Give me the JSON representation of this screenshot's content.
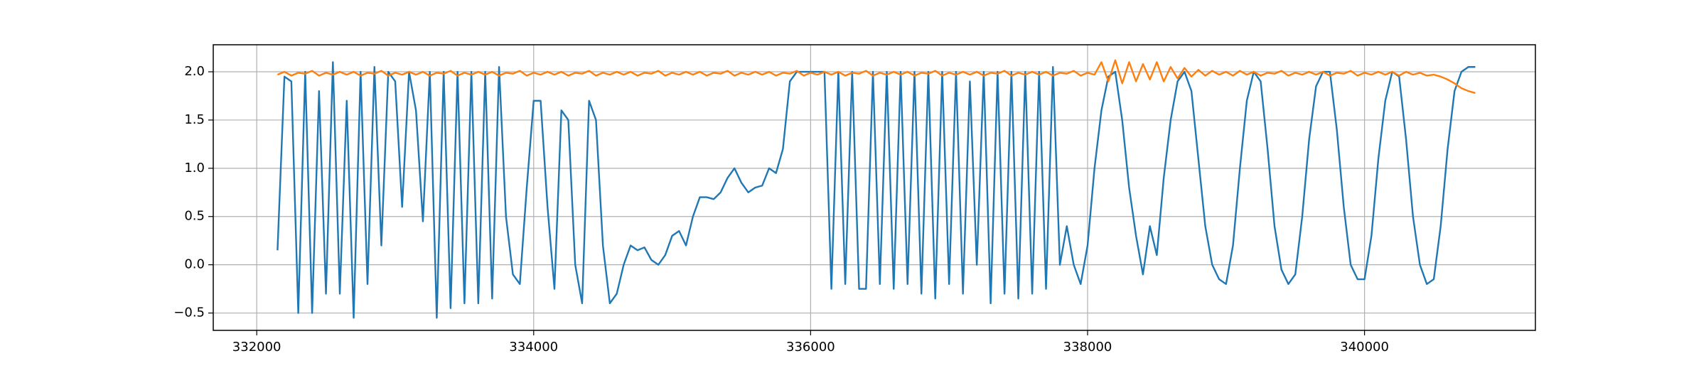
{
  "chart_data": {
    "type": "line",
    "x": [
      332150,
      332200,
      332250,
      332300,
      332350,
      332400,
      332450,
      332500,
      332550,
      332600,
      332650,
      332700,
      332750,
      332800,
      332850,
      332900,
      332950,
      333000,
      333050,
      333100,
      333150,
      333200,
      333250,
      333300,
      333350,
      333400,
      333450,
      333500,
      333550,
      333600,
      333650,
      333700,
      333750,
      333800,
      333850,
      333900,
      333950,
      334000,
      334050,
      334100,
      334150,
      334200,
      334250,
      334300,
      334350,
      334400,
      334450,
      334500,
      334550,
      334600,
      334650,
      334700,
      334750,
      334800,
      334850,
      334900,
      334950,
      335000,
      335050,
      335100,
      335150,
      335200,
      335250,
      335300,
      335350,
      335400,
      335450,
      335500,
      335550,
      335600,
      335650,
      335700,
      335750,
      335800,
      335850,
      335900,
      335950,
      336000,
      336050,
      336100,
      336150,
      336200,
      336250,
      336300,
      336350,
      336400,
      336450,
      336500,
      336550,
      336600,
      336650,
      336700,
      336750,
      336800,
      336850,
      336900,
      336950,
      337000,
      337050,
      337100,
      337150,
      337200,
      337250,
      337300,
      337350,
      337400,
      337450,
      337500,
      337550,
      337600,
      337650,
      337700,
      337750,
      337800,
      337850,
      337900,
      337950,
      338000,
      338050,
      338100,
      338150,
      338200,
      338250,
      338300,
      338350,
      338400,
      338450,
      338500,
      338550,
      338600,
      338650,
      338700,
      338750,
      338800,
      338850,
      338900,
      338950,
      339000,
      339050,
      339100,
      339150,
      339200,
      339250,
      339300,
      339350,
      339400,
      339450,
      339500,
      339550,
      339600,
      339650,
      339700,
      339750,
      339800,
      339850,
      339900,
      339950,
      340000,
      340050,
      340100,
      340150,
      340200,
      340250,
      340300,
      340350,
      340400,
      340450,
      340500,
      340550,
      340600,
      340650,
      340700,
      340750,
      340800
    ],
    "series": [
      {
        "color": "#1f77b4",
        "values": [
          0.15,
          1.95,
          1.9,
          -0.5,
          2.0,
          -0.5,
          1.8,
          -0.3,
          2.1,
          -0.3,
          1.7,
          -0.55,
          2.0,
          -0.2,
          2.05,
          0.2,
          2.0,
          1.9,
          0.6,
          2.0,
          1.6,
          0.45,
          2.0,
          -0.55,
          2.0,
          -0.45,
          2.0,
          -0.4,
          2.0,
          -0.4,
          2.0,
          -0.35,
          2.05,
          0.5,
          -0.1,
          -0.2,
          0.8,
          1.7,
          1.7,
          0.6,
          -0.25,
          1.6,
          1.5,
          0.0,
          -0.4,
          1.7,
          1.5,
          0.2,
          -0.4,
          -0.3,
          0.0,
          0.2,
          0.15,
          0.18,
          0.05,
          0.0,
          0.1,
          0.3,
          0.35,
          0.2,
          0.5,
          0.7,
          0.7,
          0.68,
          0.75,
          0.9,
          1.0,
          0.85,
          0.75,
          0.8,
          0.82,
          1.0,
          0.95,
          1.2,
          1.9,
          2.0,
          2.0,
          2.0,
          2.0,
          2.0,
          -0.25,
          2.0,
          -0.2,
          2.0,
          -0.25,
          -0.25,
          2.0,
          -0.2,
          2.0,
          -0.25,
          2.0,
          -0.2,
          2.0,
          -0.3,
          2.0,
          -0.35,
          2.0,
          -0.2,
          2.0,
          -0.3,
          1.9,
          0.0,
          2.0,
          -0.4,
          2.0,
          -0.3,
          2.0,
          -0.35,
          2.0,
          -0.3,
          2.0,
          -0.25,
          2.05,
          0.0,
          0.4,
          0.0,
          -0.2,
          0.2,
          1.0,
          1.6,
          1.95,
          2.0,
          1.5,
          0.8,
          0.3,
          -0.1,
          0.4,
          0.1,
          0.9,
          1.5,
          1.9,
          2.0,
          1.8,
          1.1,
          0.4,
          0.0,
          -0.15,
          -0.2,
          0.2,
          1.0,
          1.7,
          2.0,
          1.9,
          1.2,
          0.4,
          -0.05,
          -0.2,
          -0.1,
          0.5,
          1.3,
          1.85,
          2.0,
          2.0,
          1.4,
          0.6,
          0.0,
          -0.15,
          -0.15,
          0.3,
          1.1,
          1.7,
          2.0,
          1.95,
          1.3,
          0.5,
          0.0,
          -0.2,
          -0.15,
          0.4,
          1.2,
          1.8,
          2.0,
          2.05,
          2.05
        ]
      },
      {
        "color": "#ff7f0e",
        "values": [
          1.97,
          2.0,
          1.96,
          1.99,
          1.98,
          2.01,
          1.96,
          1.99,
          1.97,
          2.0,
          1.97,
          2.0,
          1.96,
          1.99,
          1.98,
          2.01,
          1.96,
          1.99,
          1.97,
          2.0,
          1.97,
          2.0,
          1.96,
          1.99,
          1.98,
          2.01,
          1.96,
          1.99,
          1.97,
          2.0,
          1.97,
          2.0,
          1.96,
          1.99,
          1.98,
          2.01,
          1.96,
          1.99,
          1.97,
          2.0,
          1.97,
          2.0,
          1.96,
          1.99,
          1.98,
          2.01,
          1.96,
          1.99,
          1.97,
          2.0,
          1.97,
          2.0,
          1.96,
          1.99,
          1.98,
          2.01,
          1.96,
          1.99,
          1.97,
          2.0,
          1.97,
          2.0,
          1.96,
          1.99,
          1.98,
          2.01,
          1.96,
          1.99,
          1.97,
          2.0,
          1.97,
          2.0,
          1.96,
          1.99,
          1.98,
          2.01,
          1.96,
          1.99,
          1.97,
          2.0,
          1.97,
          2.0,
          1.96,
          1.99,
          1.98,
          2.01,
          1.96,
          1.99,
          1.97,
          2.0,
          1.97,
          2.0,
          1.96,
          1.99,
          1.98,
          2.01,
          1.96,
          1.99,
          1.97,
          2.0,
          1.97,
          2.0,
          1.96,
          1.99,
          1.98,
          2.01,
          1.96,
          1.99,
          1.97,
          2.0,
          1.97,
          2.0,
          1.96,
          1.99,
          1.98,
          2.01,
          1.96,
          1.99,
          1.97,
          2.1,
          1.9,
          2.12,
          1.88,
          2.1,
          1.9,
          2.08,
          1.92,
          2.1,
          1.9,
          2.05,
          1.93,
          2.04,
          1.95,
          2.02,
          1.96,
          2.01,
          1.97,
          2.0,
          1.96,
          2.01,
          1.97,
          2.0,
          1.96,
          1.99,
          1.98,
          2.01,
          1.96,
          1.99,
          1.97,
          2.0,
          1.97,
          2.0,
          1.96,
          1.99,
          1.98,
          2.01,
          1.96,
          1.99,
          1.97,
          2.0,
          1.97,
          2.0,
          1.96,
          2.0,
          1.97,
          1.99,
          1.96,
          1.97,
          1.95,
          1.92,
          1.88,
          1.83,
          1.8,
          1.78
        ]
      }
    ],
    "xlim": [
      331686,
      341234
    ],
    "xticks": [
      332000,
      334000,
      336000,
      338000,
      340000
    ],
    "ylim": [
      -0.68,
      2.28
    ],
    "yticks": [
      {
        "value": -0.5,
        "label": "−0.5"
      },
      {
        "value": 0,
        "label": "0.0"
      },
      0.5,
      {
        "value": 1,
        "label": "1.0"
      },
      1.5,
      {
        "value": 2,
        "label": "2.0"
      }
    ],
    "grid": true
  }
}
